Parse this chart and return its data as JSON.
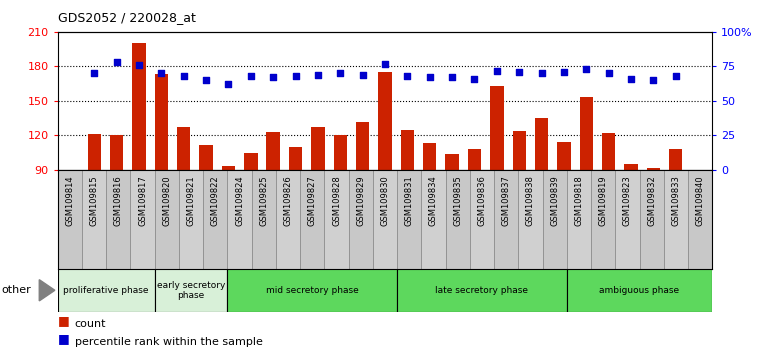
{
  "title": "GDS2052 / 220028_at",
  "samples": [
    "GSM109814",
    "GSM109815",
    "GSM109816",
    "GSM109817",
    "GSM109820",
    "GSM109821",
    "GSM109822",
    "GSM109824",
    "GSM109825",
    "GSM109826",
    "GSM109827",
    "GSM109828",
    "GSM109829",
    "GSM109830",
    "GSM109831",
    "GSM109834",
    "GSM109835",
    "GSM109836",
    "GSM109837",
    "GSM109838",
    "GSM109839",
    "GSM109818",
    "GSM109819",
    "GSM109823",
    "GSM109832",
    "GSM109833",
    "GSM109840"
  ],
  "counts": [
    121,
    120,
    200,
    173,
    127,
    112,
    93,
    105,
    123,
    110,
    127,
    120,
    132,
    175,
    125,
    113,
    104,
    108,
    163,
    124,
    135,
    114,
    153,
    122,
    95,
    92,
    108
  ],
  "percentile_ranks": [
    70,
    78,
    76,
    70,
    68,
    65,
    62,
    68,
    67,
    68,
    69,
    70,
    69,
    77,
    68,
    67,
    67,
    66,
    72,
    71,
    70,
    71,
    73,
    70,
    66,
    65,
    68
  ],
  "ylim_left": [
    90,
    210
  ],
  "ylim_right": [
    0,
    100
  ],
  "yticks_left": [
    90,
    120,
    150,
    180,
    210
  ],
  "yticks_right": [
    0,
    25,
    50,
    75,
    100
  ],
  "ytick_labels_right": [
    "0",
    "25",
    "50",
    "75",
    "100%"
  ],
  "bar_color": "#cc2200",
  "dot_color": "#0000cc",
  "bar_width": 0.6,
  "phase_configs": [
    {
      "name": "proliferative phase",
      "start": 0,
      "end": 4,
      "color": "#d8f0d8"
    },
    {
      "name": "early secretory\nphase",
      "start": 4,
      "end": 7,
      "color": "#d8f0d8"
    },
    {
      "name": "mid secretory phase",
      "start": 7,
      "end": 14,
      "color": "#5dd85d"
    },
    {
      "name": "late secretory phase",
      "start": 14,
      "end": 21,
      "color": "#5dd85d"
    },
    {
      "name": "ambiguous phase",
      "start": 21,
      "end": 27,
      "color": "#5dd85d"
    }
  ],
  "grid_lines": [
    120,
    150,
    180
  ],
  "plot_bg": "#ffffff",
  "xtick_bg": "#c8c8c8"
}
